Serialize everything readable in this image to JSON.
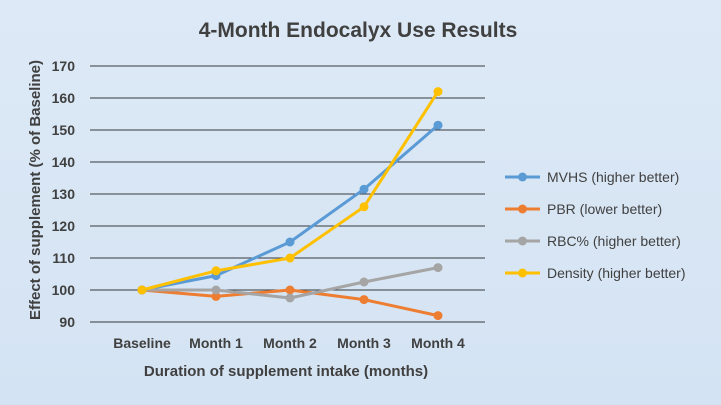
{
  "chart_data": {
    "type": "line",
    "title": "4-Month Endocalyx Use Results",
    "xlabel": "Duration of supplement intake (months)",
    "ylabel": "Effect of supplement (% of Baseline)",
    "categories": [
      "Baseline",
      "Month 1",
      "Month 2",
      "Month 3",
      "Month 4"
    ],
    "ylim": [
      90,
      170
    ],
    "yticks": [
      90,
      100,
      110,
      120,
      130,
      140,
      150,
      160,
      170
    ],
    "grid": true,
    "legend_position": "right",
    "series": [
      {
        "name": "MVHS (higher better)",
        "color": "#5b9bd5",
        "values": [
          100,
          104.5,
          115,
          131.5,
          151.5
        ]
      },
      {
        "name": "PBR (lower better)",
        "color": "#ed7d31",
        "values": [
          100,
          98,
          100,
          97,
          92
        ]
      },
      {
        "name": "RBC% (higher better)",
        "color": "#a5a5a5",
        "values": [
          100,
          100,
          97.5,
          102.5,
          107
        ]
      },
      {
        "name": "Density (higher better)",
        "color": "#ffc000",
        "values": [
          100,
          106,
          110,
          126,
          162
        ]
      }
    ]
  }
}
